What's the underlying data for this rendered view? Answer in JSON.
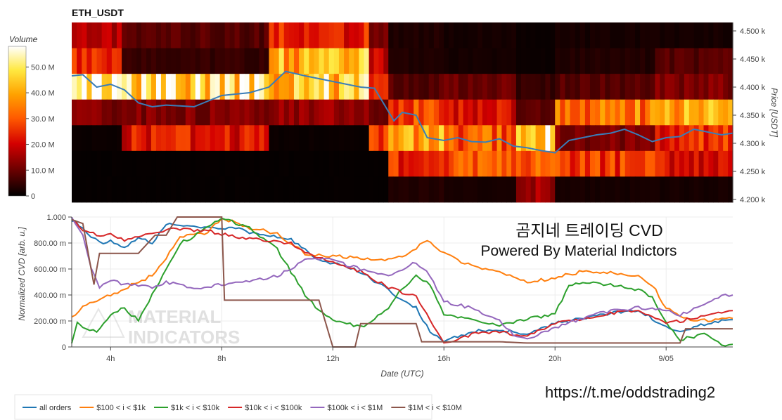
{
  "heatmap": {
    "title": "ETH_USDT",
    "colorbar_label": "Volume",
    "colorbar_ticks": [
      "50.0 M",
      "40.0 M",
      "30.0 M",
      "20.0 M",
      "10.0 M",
      "0"
    ],
    "colorbar_values": [
      50,
      40,
      30,
      20,
      10,
      0
    ],
    "colorbar_max": 58,
    "y_axis_label": "Price [USDT]",
    "y_ticks": [
      "4.500 k",
      "4.450 k",
      "4.400 k",
      "4.350 k",
      "4.300 k",
      "4.250 k",
      "4.200 k"
    ]
  },
  "cvd": {
    "y_axis_label": "Normalized CVD [arb. u.]",
    "y_ticks": [
      "1.000",
      "800.00 m",
      "600.00 m",
      "400.00 m",
      "200.00 m",
      "0"
    ],
    "x_ticks": [
      "4h",
      "8h",
      "12h",
      "16h",
      "20h",
      "9/05"
    ],
    "x_axis_label": "Date (UTC)"
  },
  "overlay": {
    "title_line1": "곰지네 트레이딩 CVD",
    "title_line2": "Powered By Material Indictors",
    "url": "https://t.me/oddstrading2",
    "watermark_line1": "MATERIAL",
    "watermark_line2": "INDICATORS"
  },
  "legend": {
    "items": [
      {
        "label": "all orders",
        "color": "#1f77b4"
      },
      {
        "label": "$100 < i < $1k",
        "color": "#ff7f0e"
      },
      {
        "label": "$1k < i < $10k",
        "color": "#2ca02c"
      },
      {
        "label": "$10k < i < $100k",
        "color": "#d62728"
      },
      {
        "label": "$100k < i < $1M",
        "color": "#9467bd"
      },
      {
        "label": "$1M < i < $10M",
        "color": "#8c564b"
      }
    ]
  },
  "chart_data": [
    {
      "type": "heatmap",
      "title": "ETH_USDT",
      "x_range_hours": [
        2.6,
        26.4
      ],
      "price_levels": [
        4500,
        4450,
        4400,
        4350,
        4300,
        4250,
        4200
      ],
      "ylim": [
        4195,
        4515
      ],
      "volume_unit": "M",
      "segments": [
        {
          "t0": 2.6,
          "t1": 4.4,
          "volumes": [
            16,
            28,
            55,
            12,
            1,
            0.5,
            0.5
          ]
        },
        {
          "t0": 4.4,
          "t1": 9.7,
          "volumes": [
            8,
            5,
            48,
            12,
            22,
            0.5,
            0.5
          ]
        },
        {
          "t0": 9.7,
          "t1": 13.3,
          "volumes": [
            24,
            42,
            45,
            14,
            1,
            0.5,
            0.5
          ]
        },
        {
          "t0": 13.3,
          "t1": 14.0,
          "volumes": [
            12,
            20,
            25,
            12,
            24,
            0.5,
            0.5
          ]
        },
        {
          "t0": 14.0,
          "t1": 16.0,
          "volumes": [
            3,
            3,
            8,
            28,
            40,
            24,
            3
          ]
        },
        {
          "t0": 16.0,
          "t1": 18.6,
          "volumes": [
            2,
            2,
            10,
            22,
            30,
            28,
            2
          ]
        },
        {
          "t0": 18.6,
          "t1": 20.0,
          "volumes": [
            1,
            1,
            5,
            8,
            48,
            34,
            16
          ]
        },
        {
          "t0": 20.0,
          "t1": 23.6,
          "volumes": [
            2,
            3,
            8,
            34,
            12,
            27,
            2
          ]
        },
        {
          "t0": 23.6,
          "t1": 26.4,
          "volumes": [
            2,
            8,
            12,
            40,
            25,
            22,
            2
          ]
        }
      ],
      "price_line": {
        "name": "price",
        "x": [
          2.6,
          3.0,
          3.5,
          4.0,
          4.5,
          5.0,
          5.5,
          6.0,
          7.0,
          8.0,
          9.0,
          9.7,
          10.3,
          11.0,
          11.5,
          12.0,
          12.5,
          13.0,
          13.5,
          13.9,
          14.2,
          14.5,
          15.0,
          15.4,
          16.0,
          16.5,
          17.0,
          17.5,
          18.0,
          18.5,
          19.0,
          19.5,
          20.0,
          20.5,
          21.0,
          21.5,
          22.0,
          22.5,
          23.0,
          23.5,
          24.0,
          24.5,
          25.0,
          25.5,
          26.0,
          26.4
        ],
        "y": [
          4420,
          4422,
          4400,
          4405,
          4395,
          4372,
          4365,
          4368,
          4365,
          4385,
          4390,
          4400,
          4428,
          4420,
          4415,
          4410,
          4405,
          4400,
          4398,
          4365,
          4340,
          4355,
          4350,
          4310,
          4305,
          4310,
          4303,
          4302,
          4308,
          4295,
          4292,
          4287,
          4283,
          4305,
          4310,
          4315,
          4318,
          4325,
          4315,
          4303,
          4310,
          4312,
          4325,
          4320,
          4315,
          4318
        ]
      }
    },
    {
      "type": "line",
      "xlabel": "Date (UTC)",
      "ylabel": "Normalized CVD [arb. u.]",
      "ylim": [
        0,
        1
      ],
      "x_ticks_hours": [
        4,
        8,
        12,
        16,
        20,
        24
      ],
      "series": [
        {
          "name": "all orders",
          "color": "#1f77b4",
          "x": [
            2.6,
            3.0,
            3.3,
            3.6,
            4.0,
            4.5,
            5.0,
            5.5,
            6.0,
            6.5,
            7.5,
            8.5,
            9.5,
            10.5,
            11.5,
            12.3,
            13.0,
            13.5,
            14.0,
            14.3,
            15.0,
            15.5,
            16.0,
            16.5,
            17.0,
            18.0,
            19.0,
            20.0,
            21.0,
            22.0,
            23.0,
            23.5,
            24.0,
            24.5,
            25.0,
            25.5,
            26.0,
            26.4
          ],
          "y": [
            0.98,
            0.92,
            0.85,
            0.8,
            0.82,
            0.76,
            0.85,
            0.79,
            0.95,
            0.93,
            0.92,
            0.91,
            0.86,
            0.83,
            0.66,
            0.63,
            0.58,
            0.5,
            0.45,
            0.38,
            0.3,
            0.12,
            0.04,
            0.08,
            0.12,
            0.13,
            0.1,
            0.18,
            0.22,
            0.26,
            0.28,
            0.22,
            0.15,
            0.13,
            0.15,
            0.18,
            0.2,
            0.21
          ]
        },
        {
          "name": "$100 < i < $1k",
          "color": "#ff7f0e",
          "x": [
            2.6,
            3.0,
            3.5,
            4.0,
            4.5,
            5.0,
            5.5,
            6.0,
            6.5,
            7.5,
            8.0,
            9.0,
            10.0,
            11.0,
            12.0,
            13.0,
            14.0,
            14.5,
            15.0,
            15.4,
            16.0,
            17.0,
            18.0,
            19.0,
            20.0,
            20.5,
            21.0,
            22.0,
            23.0,
            23.5,
            24.0,
            24.5,
            25.0,
            26.4
          ],
          "y": [
            0.22,
            0.32,
            0.35,
            0.4,
            0.45,
            0.5,
            0.55,
            0.68,
            0.85,
            0.88,
            0.99,
            0.92,
            0.87,
            0.72,
            0.7,
            0.68,
            0.67,
            0.7,
            0.76,
            0.82,
            0.72,
            0.62,
            0.58,
            0.5,
            0.53,
            0.56,
            0.58,
            0.57,
            0.55,
            0.48,
            0.3,
            0.23,
            0.2,
            0.22
          ]
        },
        {
          "name": "$1k < i < $10k",
          "color": "#2ca02c",
          "x": [
            2.6,
            2.8,
            3.0,
            3.5,
            4.0,
            4.5,
            5.0,
            5.5,
            6.0,
            6.5,
            7.0,
            7.5,
            8.0,
            9.0,
            10.0,
            11.0,
            11.5,
            12.0,
            12.5,
            13.0,
            13.5,
            14.0,
            14.5,
            15.0,
            15.5,
            16.0,
            17.0,
            18.0,
            19.0,
            20.0,
            20.5,
            21.0,
            22.0,
            23.0,
            23.5,
            24.0,
            24.5,
            25.0,
            25.5,
            26.0,
            26.4
          ],
          "y": [
            0.02,
            0.18,
            0.15,
            0.12,
            0.25,
            0.3,
            0.2,
            0.4,
            0.6,
            0.8,
            0.85,
            0.92,
            0.99,
            0.92,
            0.75,
            0.4,
            0.28,
            0.2,
            0.18,
            0.15,
            0.22,
            0.3,
            0.45,
            0.55,
            0.48,
            0.25,
            0.22,
            0.16,
            0.22,
            0.25,
            0.48,
            0.5,
            0.48,
            0.44,
            0.38,
            0.18,
            0.06,
            0.08,
            0.1,
            0.02,
            0.02
          ]
        },
        {
          "name": "$10k < i < $100k",
          "color": "#d62728",
          "x": [
            2.6,
            3.0,
            3.5,
            4.0,
            4.5,
            5.0,
            5.5,
            6.0,
            6.5,
            7.5,
            8.5,
            9.5,
            10.5,
            11.0,
            12.0,
            13.0,
            13.5,
            14.0,
            14.5,
            15.0,
            15.5,
            16.0,
            16.5,
            17.0,
            18.0,
            19.0,
            20.0,
            21.0,
            22.0,
            23.0,
            23.5,
            24.0,
            24.5,
            25.0,
            25.5,
            26.0,
            26.4
          ],
          "y": [
            0.99,
            0.9,
            0.86,
            0.87,
            0.82,
            0.85,
            0.88,
            0.9,
            0.91,
            0.89,
            0.85,
            0.82,
            0.8,
            0.72,
            0.65,
            0.58,
            0.52,
            0.46,
            0.42,
            0.4,
            0.2,
            0.02,
            0.05,
            0.1,
            0.12,
            0.08,
            0.18,
            0.22,
            0.26,
            0.28,
            0.24,
            0.18,
            0.2,
            0.22,
            0.25,
            0.27,
            0.28
          ]
        },
        {
          "name": "$100k < i < $1M",
          "color": "#9467bd",
          "x": [
            2.6,
            3.0,
            3.3,
            3.6,
            4.0,
            4.5,
            5.0,
            5.5,
            6.0,
            7.0,
            8.0,
            9.0,
            10.0,
            10.5,
            11.0,
            12.0,
            12.5,
            13.0,
            13.5,
            14.0,
            14.5,
            15.0,
            15.5,
            16.0,
            17.0,
            18.0,
            18.5,
            19.0,
            20.0,
            21.0,
            22.0,
            23.0,
            24.0,
            24.5,
            25.0,
            25.5,
            26.0,
            26.4
          ],
          "y": [
            0.99,
            0.85,
            0.6,
            0.45,
            0.52,
            0.48,
            0.47,
            0.46,
            0.5,
            0.45,
            0.48,
            0.5,
            0.55,
            0.6,
            0.68,
            0.68,
            0.63,
            0.6,
            0.58,
            0.55,
            0.6,
            0.65,
            0.55,
            0.35,
            0.3,
            0.2,
            0.1,
            0.06,
            0.15,
            0.22,
            0.28,
            0.3,
            0.28,
            0.24,
            0.3,
            0.35,
            0.4,
            0.4
          ]
        },
        {
          "name": "$1M < i < $10M",
          "color": "#8c564b",
          "x": [
            2.6,
            3.0,
            3.4,
            3.6,
            4.0,
            5.0,
            5.6,
            6.0,
            6.4,
            7.5,
            8.0,
            8.1,
            10.0,
            11.0,
            11.5,
            12.0,
            12.8,
            13.0,
            15.0,
            15.2,
            16.0,
            17.0,
            18.0,
            19.0,
            20.0,
            21.0,
            22.0,
            23.0,
            24.0,
            24.5,
            24.7,
            25.0,
            26.4
          ],
          "y": [
            0.98,
            0.95,
            0.48,
            0.72,
            0.72,
            0.72,
            0.86,
            0.86,
            1.0,
            1.0,
            1.0,
            0.36,
            0.36,
            0.36,
            0.36,
            0.0,
            0.0,
            0.18,
            0.18,
            0.04,
            0.04,
            0.04,
            0.04,
            0.03,
            0.03,
            0.03,
            0.03,
            0.03,
            0.03,
            0.03,
            0.14,
            0.14,
            0.14
          ]
        }
      ]
    }
  ]
}
